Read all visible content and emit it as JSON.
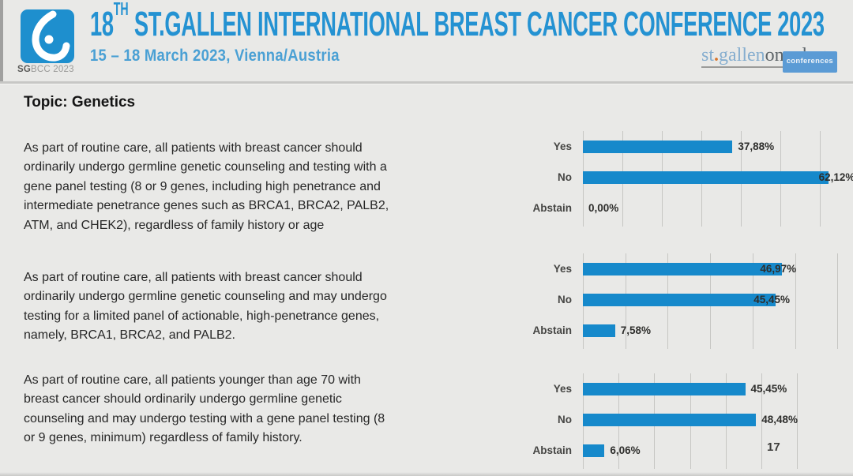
{
  "header": {
    "logo": {
      "icon": "sgbcc-breast-icon",
      "caption_bold": "SG",
      "caption_rest": "BCC 2023"
    },
    "title": {
      "prefix": "18",
      "sup": "TH",
      "rest": " ST.GALLEN INTERNATIONAL BREAST CANCER CONFERENCE 2023"
    },
    "subtitle": "15 – 18 March 2023, Vienna/Austria",
    "brand": {
      "part1": "st",
      "dot": ".",
      "part2": "gallen",
      "part3": "oncology",
      "badge": "conferences"
    }
  },
  "topic": "Topic: Genetics",
  "statements": [
    {
      "lines": [
        "As part of routine care, all patients with breast cancer should",
        "ordinarily undergo germline genetic counseling and testing with a",
        "gene panel testing (8 or 9 genes, including high penetrance and",
        "intermediate penetrance genes such as BRCA1, BRCA2, PALB2,",
        "ATM, and CHEK2), regardless of family history or age"
      ]
    },
    {
      "lines": [
        "As part of routine care, all patients with breast cancer should",
        "ordinarily undergo germline genetic counseling and may undergo",
        "testing for a limited panel of actionable, high-penetrance genes,",
        "namely, BRCA1, BRCA2, and PALB2."
      ]
    },
    {
      "lines": [
        "As part of routine care, all patients younger than age 70 with",
        "breast cancer should ordinarily undergo germline genetic",
        "counseling and may undergo testing with a gene panel testing (8",
        "or 9 genes, minimum) regardless of family history."
      ]
    }
  ],
  "chart_data": [
    {
      "type": "bar",
      "orientation": "horizontal",
      "categories": [
        "Yes",
        "No",
        "Abstain"
      ],
      "values": [
        37.88,
        62.12,
        0.0
      ],
      "value_labels": [
        "37,88%",
        "62,12%",
        "0,00%"
      ],
      "xlim": [
        0,
        68.4
      ],
      "grid_step": 10,
      "grid_end": 60,
      "grid": true,
      "legend": false,
      "label_placement": [
        "out",
        "edge",
        "out"
      ]
    },
    {
      "type": "bar",
      "orientation": "horizontal",
      "categories": [
        "Yes",
        "No",
        "Abstain"
      ],
      "values": [
        46.97,
        45.45,
        7.58
      ],
      "value_labels": [
        "46,97%",
        "45,45%",
        "7,58%"
      ],
      "xlim": [
        0,
        60.3
      ],
      "grid_step": 10,
      "grid_end": 60,
      "grid": true,
      "legend": false,
      "label_placement": [
        "in",
        "in",
        "out"
      ]
    },
    {
      "type": "bar",
      "orientation": "horizontal",
      "categories": [
        "Yes",
        "No",
        "Abstain"
      ],
      "values": [
        45.45,
        48.48,
        6.06
      ],
      "value_labels": [
        "45,45%",
        "48,48%",
        "6,06%"
      ],
      "xlim": [
        0,
        60.6
      ],
      "grid_step": 10,
      "grid_end": 60,
      "grid": true,
      "legend": false,
      "label_placement": [
        "out",
        "out",
        "out"
      ]
    }
  ],
  "page_number": "17",
  "colors": {
    "bar_blue": "#1689cb",
    "title_blue": "#2492d2",
    "date_blue": "#4aa0d4",
    "logo_blue": "#1e8fce",
    "badge_blue": "#5b9bd5",
    "orange_dot": "#d9772e"
  }
}
